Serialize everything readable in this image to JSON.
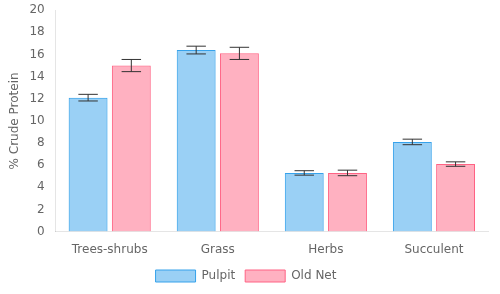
{
  "chart_data": {
    "type": "bar",
    "categories": [
      "Trees-shrubs",
      "Grass",
      "Herbs",
      "Succulent"
    ],
    "series": [
      {
        "name": "Pulpit",
        "values": [
          12.1,
          16.4,
          5.3,
          8.1
        ],
        "errors": [
          0.3,
          0.35,
          0.2,
          0.25
        ]
      },
      {
        "name": "Old Net",
        "values": [
          15.0,
          16.1,
          5.3,
          6.1
        ],
        "errors": [
          0.55,
          0.55,
          0.25,
          0.2
        ]
      }
    ],
    "ylabel": "% Crude Protein",
    "ylim": [
      0,
      20
    ],
    "yticks": [
      0,
      2,
      4,
      6,
      8,
      10,
      12,
      14,
      16,
      18,
      20
    ],
    "legend": "bottom",
    "grid": false
  }
}
